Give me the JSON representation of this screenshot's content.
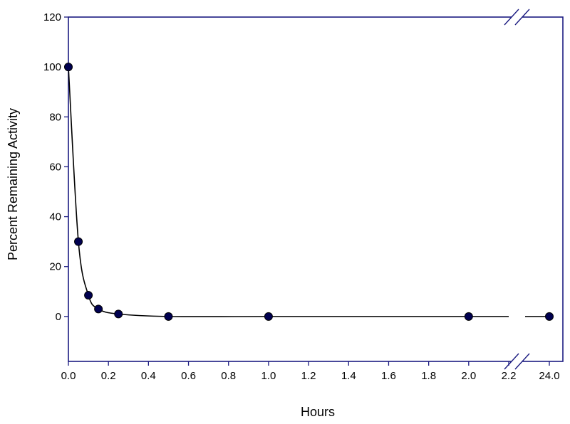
{
  "chart_data": {
    "type": "line",
    "title": "",
    "xlabel": "Hours",
    "ylabel": "Percent Remaining Activity",
    "xlim": [
      0,
      2.2
    ],
    "ylim": [
      -18,
      120
    ],
    "x_break": {
      "after": 2.2,
      "resume": 24.0
    },
    "x_ticks": [
      {
        "value": 0.0,
        "label": "0.0"
      },
      {
        "value": 0.2,
        "label": "0.2"
      },
      {
        "value": 0.4,
        "label": "0.4"
      },
      {
        "value": 0.6,
        "label": "0.6"
      },
      {
        "value": 0.8,
        "label": "0.8"
      },
      {
        "value": 1.0,
        "label": "1.0"
      },
      {
        "value": 1.2,
        "label": "1.2"
      },
      {
        "value": 1.4,
        "label": "1.4"
      },
      {
        "value": 1.6,
        "label": "1.6"
      },
      {
        "value": 1.8,
        "label": "1.8"
      },
      {
        "value": 2.0,
        "label": "2.0"
      },
      {
        "value": 2.2,
        "label": "2.2"
      },
      {
        "value": 24.0,
        "label": "24.0"
      }
    ],
    "y_ticks": [
      {
        "value": 0,
        "label": "0"
      },
      {
        "value": 20,
        "label": "20"
      },
      {
        "value": 40,
        "label": "40"
      },
      {
        "value": 60,
        "label": "60"
      },
      {
        "value": 80,
        "label": "80"
      },
      {
        "value": 100,
        "label": "100"
      },
      {
        "value": 120,
        "label": "120"
      }
    ],
    "grid": false,
    "series": [
      {
        "color": "#000050",
        "points": [
          {
            "x": 0.0,
            "y": 100
          },
          {
            "x": 0.05,
            "y": 30
          },
          {
            "x": 0.1,
            "y": 8.5
          },
          {
            "x": 0.15,
            "y": 3
          },
          {
            "x": 0.25,
            "y": 1
          },
          {
            "x": 0.5,
            "y": 0
          },
          {
            "x": 1.0,
            "y": 0
          },
          {
            "x": 2.0,
            "y": 0
          },
          {
            "x": 24.0,
            "y": 0
          }
        ]
      }
    ]
  }
}
